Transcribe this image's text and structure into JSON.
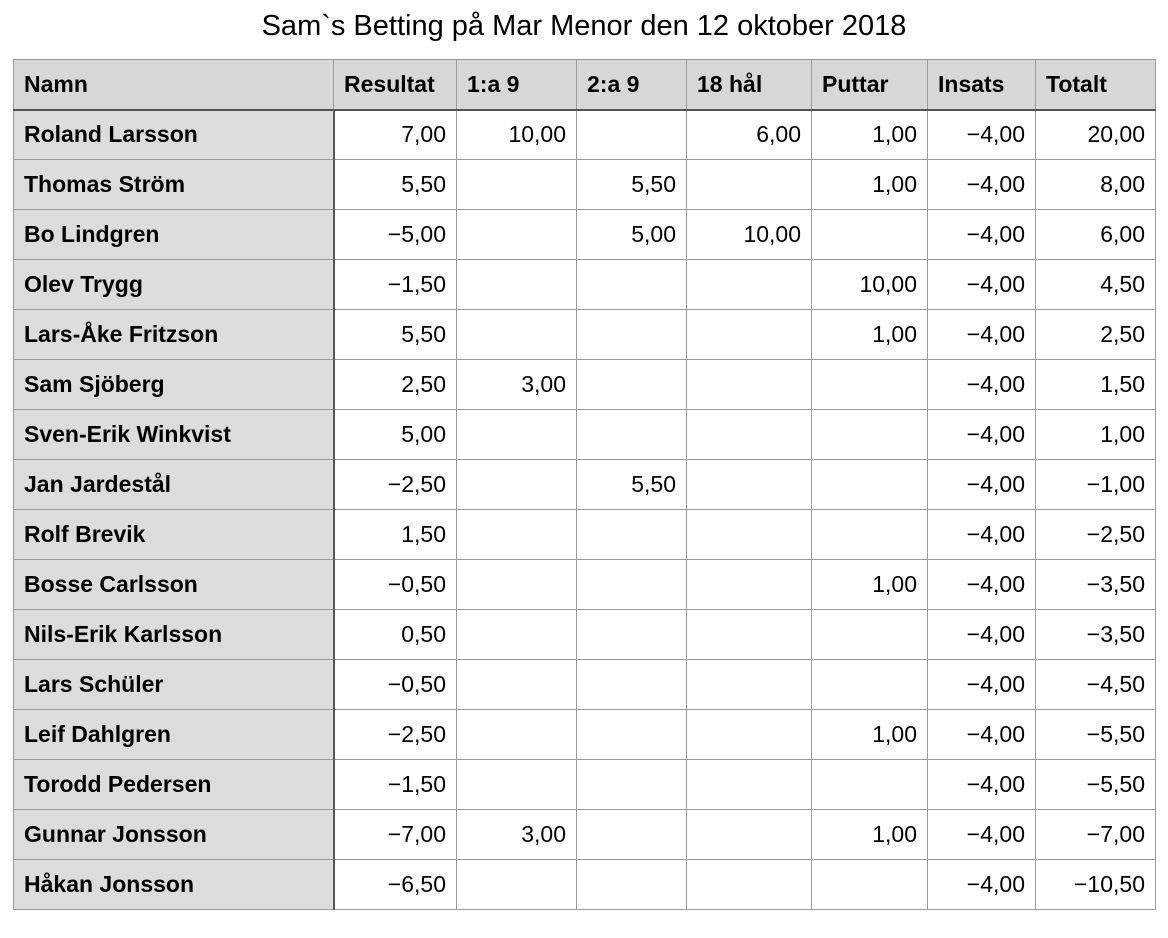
{
  "title": "Sam`s Betting på Mar Menor den 12 oktober 2018",
  "table": {
    "headers": [
      "Namn",
      "Resultat",
      "1:a 9",
      "2:a 9",
      "18 hål",
      "Puttar",
      "Insats",
      "Totalt"
    ],
    "rows": [
      [
        "Roland Larsson",
        "7,00",
        "10,00",
        "",
        "6,00",
        "1,00",
        "−4,00",
        "20,00"
      ],
      [
        "Thomas Ström",
        "5,50",
        "",
        "5,50",
        "",
        "1,00",
        "−4,00",
        "8,00"
      ],
      [
        "Bo Lindgren",
        "−5,00",
        "",
        "5,00",
        "10,00",
        "",
        "−4,00",
        "6,00"
      ],
      [
        "Olev Trygg",
        "−1,50",
        "",
        "",
        "",
        "10,00",
        "−4,00",
        "4,50"
      ],
      [
        "Lars-Åke Fritzson",
        "5,50",
        "",
        "",
        "",
        "1,00",
        "−4,00",
        "2,50"
      ],
      [
        "Sam Sjöberg",
        "2,50",
        "3,00",
        "",
        "",
        "",
        "−4,00",
        "1,50"
      ],
      [
        "Sven-Erik Winkvist",
        "5,00",
        "",
        "",
        "",
        "",
        "−4,00",
        "1,00"
      ],
      [
        "Jan Jardestål",
        "−2,50",
        "",
        "5,50",
        "",
        "",
        "−4,00",
        "−1,00"
      ],
      [
        "Rolf Brevik",
        "1,50",
        "",
        "",
        "",
        "",
        "−4,00",
        "−2,50"
      ],
      [
        "Bosse Carlsson",
        "−0,50",
        "",
        "",
        "",
        "1,00",
        "−4,00",
        "−3,50"
      ],
      [
        "Nils-Erik Karlsson",
        "0,50",
        "",
        "",
        "",
        "",
        "−4,00",
        "−3,50"
      ],
      [
        "Lars Schüler",
        "−0,50",
        "",
        "",
        "",
        "",
        "−4,00",
        "−4,50"
      ],
      [
        "Leif Dahlgren",
        "−2,50",
        "",
        "",
        "",
        "1,00",
        "−4,00",
        "−5,50"
      ],
      [
        "Torodd Pedersen",
        "−1,50",
        "",
        "",
        "",
        "",
        "−4,00",
        "−5,50"
      ],
      [
        "Gunnar Jonsson",
        "−7,00",
        "3,00",
        "",
        "",
        "1,00",
        "−4,00",
        "−7,00"
      ],
      [
        "Håkan Jonsson",
        "−6,50",
        "",
        "",
        "",
        "",
        "−4,00",
        "−10,50"
      ]
    ]
  }
}
